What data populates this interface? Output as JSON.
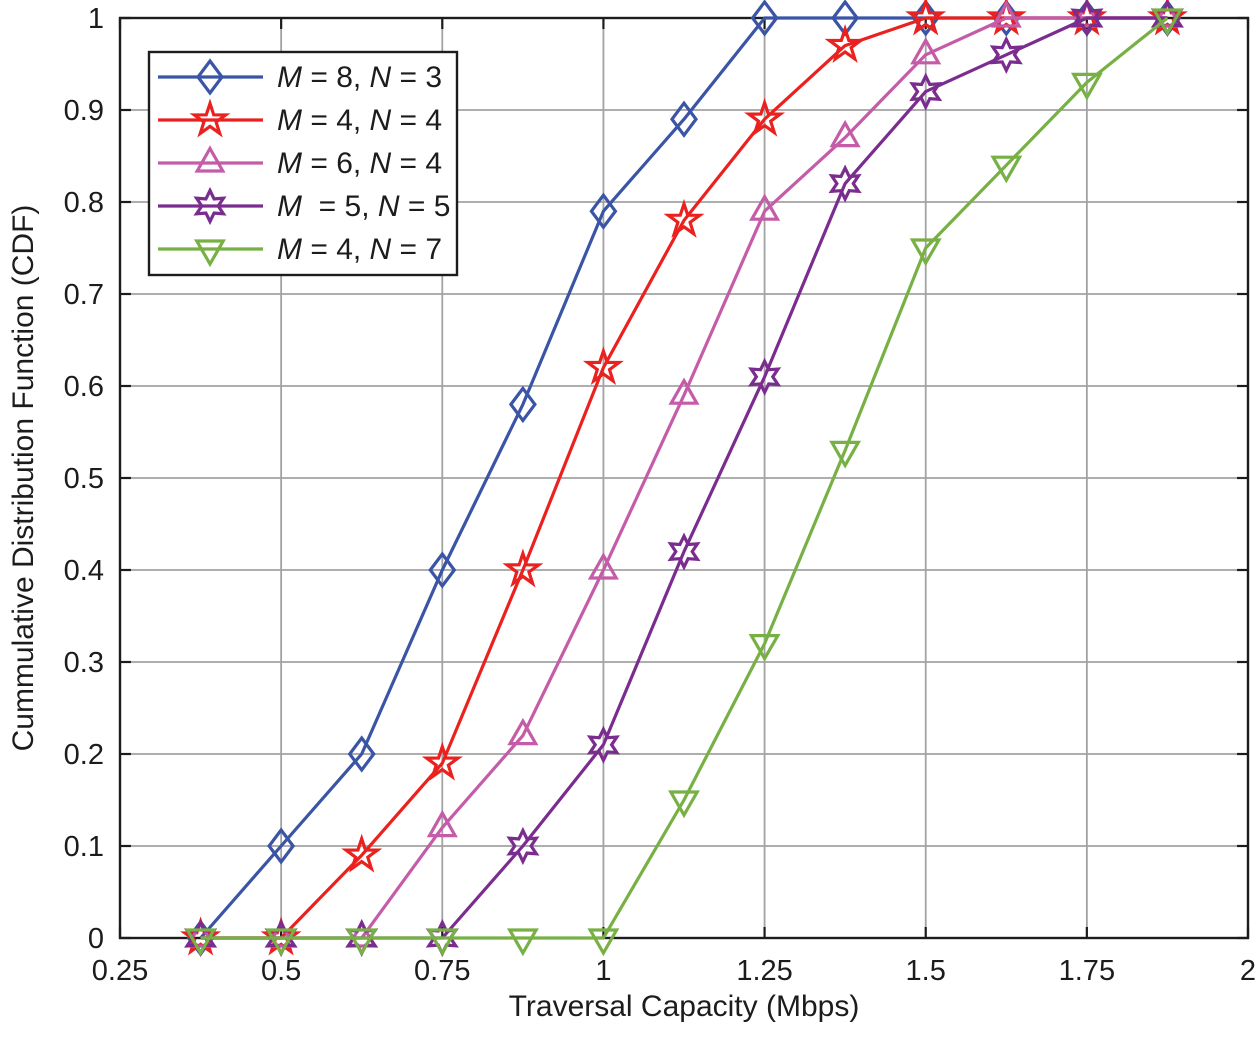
{
  "chart_data": {
    "type": "line",
    "title": "",
    "xlabel": "Traversal Capacity (Mbps)",
    "ylabel": "Cummulative Distribution Function (CDF)",
    "xlim": [
      0.25,
      2
    ],
    "ylim": [
      0,
      1
    ],
    "x_ticks": [
      0.25,
      0.5,
      0.75,
      1,
      1.25,
      1.5,
      1.75,
      2
    ],
    "x_tick_labels": [
      "0.25",
      "0.5",
      "0.75",
      "1",
      "1.25",
      "1.5",
      "1.75",
      "2"
    ],
    "y_ticks": [
      0,
      0.1,
      0.2,
      0.3,
      0.4,
      0.5,
      0.6,
      0.7,
      0.8,
      0.9,
      1
    ],
    "y_tick_labels": [
      "0",
      "0.1",
      "0.2",
      "0.3",
      "0.4",
      "0.5",
      "0.6",
      "0.7",
      "0.8",
      "0.9",
      "1"
    ],
    "grid": true,
    "legend_position": "top-left",
    "x": [
      0.375,
      0.5,
      0.625,
      0.75,
      0.875,
      1.0,
      1.125,
      1.25,
      1.375,
      1.5,
      1.625,
      1.75,
      1.875
    ],
    "series": [
      {
        "name": "M = 8, N = 3",
        "marker": "diamond",
        "color": "#3a54a6",
        "values": [
          0,
          0.1,
          0.2,
          0.4,
          0.58,
          0.79,
          0.89,
          1.0,
          1.0,
          1.0,
          1.0,
          1.0,
          1.0
        ]
      },
      {
        "name": "M = 4, N = 4",
        "marker": "star5",
        "color": "#ea211e",
        "values": [
          0,
          0,
          0.09,
          0.19,
          0.4,
          0.62,
          0.78,
          0.89,
          0.97,
          1.0,
          1.0,
          1.0,
          1.0
        ]
      },
      {
        "name": "M = 6, N = 4",
        "marker": "triangle-up",
        "color": "#c45ca8",
        "values": [
          0,
          0,
          0,
          0.12,
          0.22,
          0.4,
          0.59,
          0.79,
          0.87,
          0.96,
          1.0,
          1.0,
          1.0
        ]
      },
      {
        "name": "M  = 5, N = 5",
        "marker": "star6",
        "color": "#7b2c8f",
        "values": [
          0,
          0,
          0,
          0,
          0.1,
          0.21,
          0.42,
          0.61,
          0.82,
          0.92,
          0.96,
          1.0,
          1.0
        ]
      },
      {
        "name": "M = 4, N = 7",
        "marker": "triangle-down",
        "color": "#77b044",
        "values": [
          0,
          0,
          0,
          0,
          0,
          0,
          0.15,
          0.32,
          0.53,
          0.75,
          0.84,
          0.93,
          1.0
        ]
      }
    ],
    "colors": {
      "grid": "#a2a2a2",
      "axis": "#1c1c1c",
      "text": "#1c1c1c",
      "legend_background": "#ffffff",
      "legend_border": "#1c1c1c"
    }
  }
}
